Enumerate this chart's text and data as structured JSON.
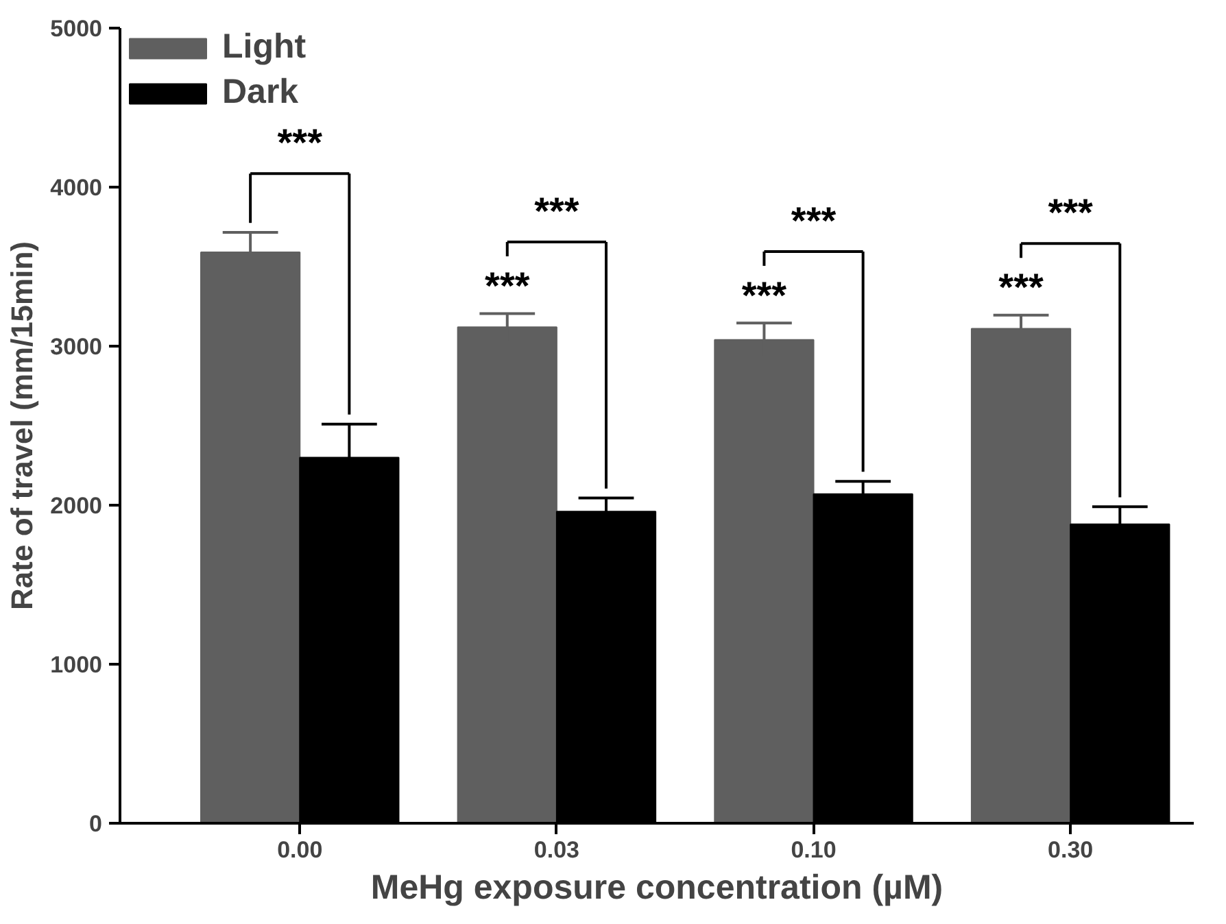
{
  "chart_data": {
    "type": "bar",
    "xlabel": "MeHg exposure concentration (µM)",
    "ylabel": "Rate of travel (mm/15min)",
    "categories": [
      "0.00",
      "0.03",
      "0.10",
      "0.30"
    ],
    "series": [
      {
        "name": "Light",
        "color": "#5f5f5f",
        "values": [
          3590,
          3120,
          3040,
          3110
        ],
        "errors": [
          125,
          85,
          105,
          85
        ]
      },
      {
        "name": "Dark",
        "color": "#000000",
        "values": [
          2300,
          1960,
          2070,
          1880
        ],
        "errors": [
          210,
          85,
          80,
          110
        ]
      }
    ],
    "ylim": [
      0,
      5000
    ],
    "yticks": [
      0,
      1000,
      2000,
      3000,
      4000,
      5000
    ],
    "grid": false,
    "legend": "top left",
    "annotations": [
      "***",
      "***",
      "***",
      "***",
      "***",
      "***",
      "***"
    ]
  }
}
